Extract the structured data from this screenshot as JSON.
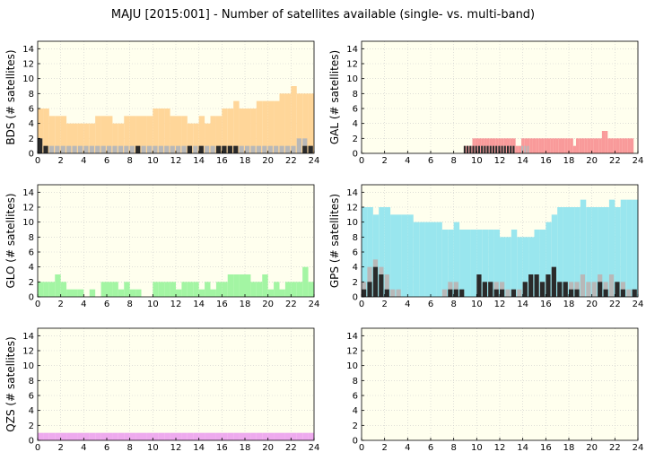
{
  "title": "MAJU [2015:001] - Number of satellites available (single- vs. multi-band)",
  "colors": {
    "background": "#ffffee",
    "grid": "#cccccc",
    "single_band": "#b8b8b8",
    "multi_band": "#2a2a2a",
    "BDS": "#ffd699",
    "GAL": "#f99a9a",
    "GLO": "#a3f5a3",
    "GPS": "#99e6ee",
    "QZS": "#eeaaee"
  },
  "chart_data": [
    {
      "type": "bar",
      "system": "BDS",
      "ylabel": "BDS (# satellites)",
      "xlim": [
        0,
        24
      ],
      "ylim": [
        0,
        15
      ],
      "xticks": [
        0,
        2,
        4,
        6,
        8,
        10,
        12,
        14,
        16,
        18,
        20,
        22,
        24
      ],
      "yticks": [
        0,
        2,
        4,
        6,
        8,
        10,
        12,
        14
      ],
      "x": [
        0.25,
        0.75,
        1.25,
        1.75,
        2.25,
        2.75,
        3.25,
        3.75,
        4.25,
        4.75,
        5.25,
        5.75,
        6.25,
        6.75,
        7.25,
        7.75,
        8.25,
        8.75,
        9.25,
        9.75,
        10.25,
        10.75,
        11.25,
        11.75,
        12.25,
        12.75,
        13.25,
        13.75,
        14.25,
        14.75,
        15.25,
        15.75,
        16.25,
        16.75,
        17.25,
        17.75,
        18.25,
        18.75,
        19.25,
        19.75,
        20.25,
        20.75,
        21.25,
        21.75,
        22.25,
        22.75,
        23.25,
        23.75
      ],
      "series": [
        {
          "name": "",
          "values": [
            6,
            6,
            5,
            5,
            5,
            4,
            4,
            4,
            4,
            4,
            5,
            5,
            5,
            4,
            4,
            5,
            5,
            5,
            5,
            5,
            6,
            6,
            6,
            5,
            5,
            5,
            4,
            4,
            5,
            4,
            5,
            5,
            6,
            6,
            7,
            6,
            6,
            6,
            7,
            7,
            7,
            7,
            8,
            8,
            9,
            8,
            8,
            8
          ]
        },
        {
          "name": "",
          "values": [
            2,
            1,
            1,
            1,
            1,
            1,
            1,
            1,
            1,
            1,
            1,
            1,
            1,
            1,
            1,
            1,
            1,
            1,
            1,
            1,
            1,
            1,
            1,
            1,
            1,
            1,
            1,
            1,
            1,
            1,
            1,
            1,
            1,
            1,
            1,
            1,
            1,
            1,
            1,
            1,
            1,
            1,
            1,
            1,
            1,
            2,
            2,
            1
          ]
        },
        {
          "name": "",
          "values": [
            2,
            1,
            0,
            0,
            0,
            0,
            0,
            0,
            0,
            0,
            0,
            0,
            0,
            0,
            0,
            0,
            0,
            1,
            0,
            0,
            0,
            0,
            0,
            0,
            0,
            0,
            1,
            0,
            1,
            0,
            0,
            1,
            1,
            1,
            1,
            0,
            0,
            0,
            0,
            0,
            0,
            0,
            0,
            0,
            0,
            0,
            1,
            1
          ]
        }
      ]
    },
    {
      "type": "bar",
      "system": "GAL",
      "ylabel": "GAL (# satellites)",
      "xlim": [
        0,
        24
      ],
      "ylim": [
        0,
        15
      ],
      "xticks": [
        0,
        2,
        4,
        6,
        8,
        10,
        12,
        14,
        16,
        18,
        20,
        22,
        24
      ],
      "yticks": [
        0,
        2,
        4,
        6,
        8,
        10,
        12,
        14
      ],
      "x": [
        9.0,
        9.25,
        9.5,
        9.75,
        10.0,
        10.25,
        10.5,
        10.75,
        11.0,
        11.25,
        11.5,
        11.75,
        12.0,
        12.25,
        12.5,
        12.75,
        13.0,
        13.25,
        13.5,
        13.75,
        14.0,
        14.25,
        14.5,
        14.75,
        15.0,
        15.25,
        15.5,
        15.75,
        16.0,
        16.25,
        16.5,
        16.75,
        17.0,
        17.25,
        17.5,
        17.75,
        18.0,
        18.25,
        18.5,
        18.75,
        19.0,
        19.25,
        19.5,
        19.75,
        20.0,
        20.25,
        20.5,
        20.75,
        21.0,
        21.25,
        21.5,
        21.75,
        22.0,
        22.25,
        22.5,
        22.75,
        23.0,
        23.25,
        23.5
      ],
      "series": [
        {
          "name": "",
          "values": [
            1,
            1,
            1,
            2,
            2,
            2,
            2,
            2,
            2,
            2,
            2,
            2,
            2,
            2,
            2,
            2,
            2,
            2,
            1,
            1,
            2,
            2,
            2,
            2,
            2,
            2,
            2,
            2,
            2,
            2,
            2,
            2,
            2,
            2,
            2,
            2,
            2,
            2,
            1,
            2,
            2,
            2,
            2,
            2,
            2,
            2,
            2,
            2,
            3,
            3,
            2,
            2,
            2,
            2,
            2,
            2,
            2,
            2,
            2
          ]
        },
        {
          "name": "",
          "values": [
            1,
            1,
            1,
            1,
            1,
            1,
            1,
            1,
            1,
            1,
            1,
            1,
            1,
            1,
            1,
            1,
            1,
            1,
            0,
            0,
            1,
            1,
            1,
            0,
            0,
            0,
            0,
            0,
            0,
            0,
            0,
            0,
            0,
            0,
            0,
            0,
            0,
            0,
            0,
            0,
            0,
            0,
            0,
            0,
            0,
            0,
            0,
            0,
            0,
            0,
            0,
            0,
            0,
            0,
            0,
            0,
            0,
            0,
            0
          ]
        },
        {
          "name": "",
          "values": [
            1,
            1,
            1,
            1,
            1,
            1,
            1,
            1,
            1,
            1,
            1,
            1,
            1,
            1,
            1,
            1,
            1,
            1,
            0,
            0,
            0,
            0,
            0,
            0,
            0,
            0,
            0,
            0,
            0,
            0,
            0,
            0,
            0,
            0,
            0,
            0,
            0,
            0,
            0,
            0,
            0,
            0,
            0,
            0,
            0,
            0,
            0,
            0,
            0,
            0,
            0,
            0,
            0,
            0,
            0,
            0,
            0,
            0,
            0
          ]
        }
      ]
    },
    {
      "type": "bar",
      "system": "GLO",
      "ylabel": "GLO (# satellites)",
      "xlim": [
        0,
        24
      ],
      "ylim": [
        0,
        15
      ],
      "xticks": [
        0,
        2,
        4,
        6,
        8,
        10,
        12,
        14,
        16,
        18,
        20,
        22,
        24
      ],
      "yticks": [
        0,
        2,
        4,
        6,
        8,
        10,
        12,
        14
      ],
      "x": [
        0.25,
        0.75,
        1.25,
        1.75,
        2.25,
        2.75,
        3.25,
        3.75,
        4.25,
        4.75,
        5.25,
        5.75,
        6.25,
        6.75,
        7.25,
        7.75,
        8.25,
        8.75,
        9.25,
        9.75,
        10.25,
        10.75,
        11.25,
        11.75,
        12.25,
        12.75,
        13.25,
        13.75,
        14.25,
        14.75,
        15.25,
        15.75,
        16.25,
        16.75,
        17.25,
        17.75,
        18.25,
        18.75,
        19.25,
        19.75,
        20.25,
        20.75,
        21.25,
        21.75,
        22.25,
        22.75,
        23.25,
        23.75
      ],
      "series": [
        {
          "name": "",
          "values": [
            2,
            2,
            2,
            3,
            2,
            1,
            1,
            1,
            0,
            1,
            0,
            2,
            2,
            2,
            1,
            2,
            1,
            1,
            0,
            0,
            2,
            2,
            2,
            2,
            1,
            2,
            2,
            2,
            1,
            2,
            1,
            2,
            2,
            3,
            3,
            3,
            3,
            2,
            2,
            3,
            1,
            2,
            1,
            2,
            2,
            2,
            4,
            2
          ]
        }
      ]
    },
    {
      "type": "bar",
      "system": "GPS",
      "ylabel": "GPS (# satellites)",
      "xlim": [
        0,
        24
      ],
      "ylim": [
        0,
        15
      ],
      "xticks": [
        0,
        2,
        4,
        6,
        8,
        10,
        12,
        14,
        16,
        18,
        20,
        22,
        24
      ],
      "yticks": [
        0,
        2,
        4,
        6,
        8,
        10,
        12,
        14
      ],
      "x": [
        0.25,
        0.75,
        1.25,
        1.75,
        2.25,
        2.75,
        3.25,
        3.75,
        4.25,
        4.75,
        5.25,
        5.75,
        6.25,
        6.75,
        7.25,
        7.75,
        8.25,
        8.75,
        9.25,
        9.75,
        10.25,
        10.75,
        11.25,
        11.75,
        12.25,
        12.75,
        13.25,
        13.75,
        14.25,
        14.75,
        15.25,
        15.75,
        16.25,
        16.75,
        17.25,
        17.75,
        18.25,
        18.75,
        19.25,
        19.75,
        20.25,
        20.75,
        21.25,
        21.75,
        22.25,
        22.75,
        23.25,
        23.75
      ],
      "series": [
        {
          "name": "",
          "values": [
            12,
            12,
            11,
            12,
            12,
            11,
            11,
            11,
            11,
            10,
            10,
            10,
            10,
            10,
            9,
            9,
            10,
            9,
            9,
            9,
            9,
            9,
            9,
            9,
            8,
            8,
            9,
            8,
            8,
            8,
            9,
            9,
            10,
            11,
            12,
            12,
            12,
            12,
            13,
            12,
            12,
            12,
            12,
            13,
            12,
            13,
            13,
            13
          ]
        },
        {
          "name": "",
          "values": [
            2,
            4,
            5,
            4,
            3,
            1,
            1,
            0,
            0,
            0,
            0,
            0,
            0,
            0,
            1,
            2,
            2,
            1,
            0,
            0,
            3,
            2,
            2,
            2,
            2,
            1,
            1,
            1,
            2,
            3,
            3,
            2,
            3,
            4,
            2,
            2,
            2,
            2,
            3,
            2,
            2,
            3,
            2,
            3,
            2,
            2,
            1,
            1
          ]
        },
        {
          "name": "",
          "values": [
            1,
            2,
            4,
            3,
            1,
            0,
            0,
            0,
            0,
            0,
            0,
            0,
            0,
            0,
            0,
            1,
            1,
            1,
            0,
            0,
            3,
            2,
            2,
            1,
            1,
            0,
            1,
            0,
            2,
            3,
            3,
            2,
            3,
            4,
            2,
            2,
            1,
            1,
            0,
            0,
            0,
            2,
            1,
            0,
            2,
            1,
            0,
            1
          ]
        }
      ]
    },
    {
      "type": "bar",
      "system": "QZS",
      "ylabel": "QZS (# satellites)",
      "xlim": [
        0,
        24
      ],
      "ylim": [
        0,
        15
      ],
      "xticks": [
        0,
        2,
        4,
        6,
        8,
        10,
        12,
        14,
        16,
        18,
        20,
        22,
        24
      ],
      "yticks": [
        0,
        2,
        4,
        6,
        8,
        10,
        12,
        14
      ],
      "x": [
        0.25,
        0.75,
        1.25,
        1.75,
        2.25,
        2.75,
        3.25,
        3.75,
        4.25,
        4.75,
        5.25,
        5.75,
        6.25,
        6.75,
        7.25,
        7.75,
        8.25,
        8.75,
        9.25,
        9.75,
        10.25,
        10.75,
        11.25,
        11.75,
        12.25,
        12.75,
        13.25,
        13.75,
        14.25,
        14.75,
        15.25,
        15.75,
        16.25,
        16.75,
        17.25,
        17.75,
        18.25,
        18.75,
        19.25,
        19.75,
        20.25,
        20.75,
        21.25,
        21.75,
        22.25,
        22.75,
        23.25,
        23.75
      ],
      "series": [
        {
          "name": "",
          "values": [
            1,
            1,
            1,
            1,
            1,
            1,
            1,
            1,
            1,
            1,
            1,
            1,
            1,
            1,
            1,
            1,
            1,
            1,
            1,
            1,
            1,
            1,
            1,
            1,
            1,
            1,
            1,
            1,
            1,
            1,
            1,
            1,
            1,
            1,
            1,
            1,
            1,
            1,
            1,
            1,
            1,
            1,
            1,
            1,
            1,
            1,
            1,
            1
          ]
        }
      ]
    },
    {
      "type": "bar",
      "system": "",
      "ylabel": "",
      "xlim": [
        0,
        24
      ],
      "ylim": [
        0,
        15
      ],
      "xticks": [
        0,
        2,
        4,
        6,
        8,
        10,
        12,
        14,
        16,
        18,
        20,
        22,
        24
      ],
      "yticks": [
        0,
        2,
        4,
        6,
        8,
        10,
        12,
        14
      ],
      "x": [],
      "series": []
    }
  ]
}
